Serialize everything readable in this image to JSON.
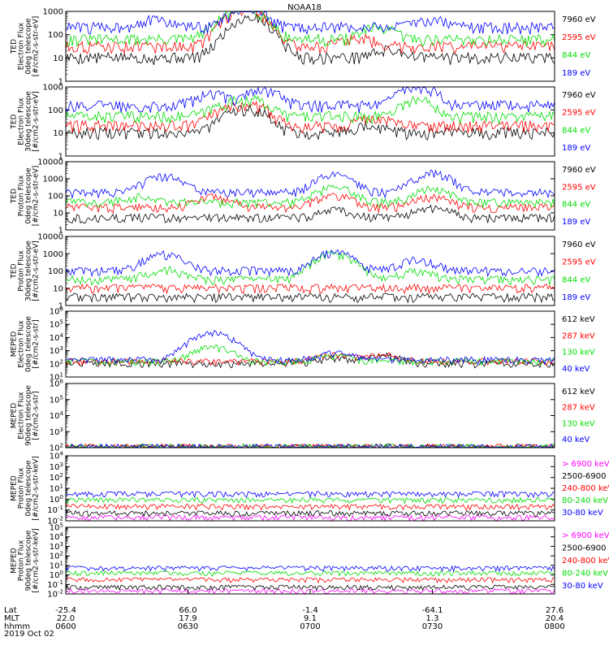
{
  "title": "NOAA18",
  "date_label": "2019 Oct 02",
  "x_axis": {
    "row_labels": [
      "Lat",
      "MLT",
      "hhmm"
    ],
    "ticks": [
      {
        "lat": "-25.4",
        "mlt": "22.0",
        "hhmm": "0600"
      },
      {
        "lat": "66.0",
        "mlt": "17.9",
        "hhmm": "0630"
      },
      {
        "lat": "-1.4",
        "mlt": "9.1",
        "hhmm": "0700"
      },
      {
        "lat": "-64.1",
        "mlt": "1.3",
        "hhmm": "0730"
      },
      {
        "lat": "27.6",
        "mlt": "20.4",
        "hhmm": "0800"
      }
    ]
  },
  "colors": {
    "blue": "#0000ff",
    "red": "#ff0000",
    "green": "#00dd00",
    "black": "#000000",
    "magenta": "#ff00ff"
  },
  "chart_data": [
    {
      "type": "line",
      "ylabel": [
        "TED",
        "Electron Flux",
        "0deg telescope",
        "[#/cm2-s-str-eV]"
      ],
      "yscale": "log",
      "ylim": [
        1,
        1000
      ],
      "ytick_labels": [
        "1000",
        "100",
        "10",
        "1"
      ],
      "legend_placement": "right",
      "series": [
        {
          "name": "7960 eV",
          "color": "black",
          "base": 10,
          "envelope": [
            [
              0.35,
              5
            ],
            [
              0.38,
              50
            ],
            [
              0.66,
              1
            ]
          ]
        },
        {
          "name": "2595 eV",
          "color": "red",
          "base": 30,
          "envelope": [
            [
              0.34,
              3
            ],
            [
              0.37,
              40
            ],
            [
              0.6,
              1.2
            ]
          ]
        },
        {
          "name": "844 eV",
          "color": "green",
          "base": 60,
          "envelope": [
            [
              0.33,
              3
            ],
            [
              0.37,
              20
            ],
            [
              0.64,
              2
            ]
          ]
        },
        {
          "name": "189 eV",
          "color": "blue",
          "base": 200,
          "envelope": [
            [
              0.18,
              1
            ],
            [
              0.37,
              5
            ],
            [
              0.75,
              1
            ]
          ]
        }
      ]
    },
    {
      "type": "line",
      "ylabel": [
        "TED",
        "Electron Flux",
        "30deg telescope",
        "[#/cm2-s-str-eV]"
      ],
      "yscale": "log",
      "ylim": [
        1,
        1000
      ],
      "ytick_labels": [
        "1000",
        "100",
        "10",
        "1"
      ],
      "legend_placement": "right",
      "series": [
        {
          "name": "7960 eV",
          "color": "black",
          "base": 10,
          "envelope": [
            [
              0.34,
              3
            ],
            [
              0.38,
              8
            ],
            [
              0.62,
              1
            ]
          ]
        },
        {
          "name": "2595 eV",
          "color": "red",
          "base": 20,
          "envelope": [
            [
              0.33,
              3
            ],
            [
              0.38,
              6
            ],
            [
              0.63,
              1
            ]
          ]
        },
        {
          "name": "844 eV",
          "color": "green",
          "base": 50,
          "envelope": [
            [
              0.33,
              2
            ],
            [
              0.38,
              4
            ],
            [
              0.72,
              4
            ]
          ]
        },
        {
          "name": "189 eV",
          "color": "blue",
          "base": 150,
          "envelope": [
            [
              0.3,
              2
            ],
            [
              0.4,
              4
            ],
            [
              0.72,
              6
            ]
          ]
        }
      ]
    },
    {
      "type": "line",
      "ylabel": [
        "TED",
        "Proton Flux",
        "0deg telescope",
        "[#/cm2-s-str-eV]"
      ],
      "yscale": "log",
      "ylim": [
        1,
        10000
      ],
      "ytick_labels": [
        "10000",
        "1000",
        "100",
        "10",
        "1"
      ],
      "legend_placement": "right",
      "series": [
        {
          "name": "7960 eV",
          "color": "black",
          "base": 5,
          "envelope": [
            [
              0.55,
              2
            ],
            [
              0.75,
              3
            ]
          ]
        },
        {
          "name": "2595 eV",
          "color": "red",
          "base": 20,
          "envelope": [
            [
              0.3,
              3
            ],
            [
              0.55,
              4
            ],
            [
              0.75,
              3
            ]
          ]
        },
        {
          "name": "844 eV",
          "color": "green",
          "base": 40,
          "envelope": [
            [
              0.15,
              1
            ],
            [
              0.55,
              6
            ],
            [
              0.75,
              5
            ]
          ]
        },
        {
          "name": "189 eV",
          "color": "blue",
          "base": 150,
          "envelope": [
            [
              0.2,
              8
            ],
            [
              0.55,
              10
            ],
            [
              0.75,
              12
            ]
          ]
        }
      ]
    },
    {
      "type": "line",
      "ylabel": [
        "TED",
        "Proton Flux",
        "30deg telescope",
        "[#/cm2-s-str-eV]"
      ],
      "yscale": "log",
      "ylim": [
        1,
        10000
      ],
      "ytick_labels": [
        "10000",
        "1000",
        "100",
        "10",
        "1"
      ],
      "legend_placement": "right",
      "series": [
        {
          "name": "7960 eV",
          "color": "black",
          "base": 3,
          "envelope": []
        },
        {
          "name": "2595 eV",
          "color": "red",
          "base": 10,
          "envelope": []
        },
        {
          "name": "844 eV",
          "color": "green",
          "base": 30,
          "envelope": [
            [
              0.2,
              3
            ],
            [
              0.55,
              30
            ],
            [
              0.72,
              2
            ]
          ]
        },
        {
          "name": "189 eV",
          "color": "blue",
          "base": 100,
          "envelope": [
            [
              0.2,
              8
            ],
            [
              0.55,
              10
            ],
            [
              0.72,
              3
            ]
          ]
        }
      ]
    },
    {
      "type": "line",
      "ylabel": [
        "MEPED",
        "Electron Flux",
        "0deg telescope",
        "[#/cm2-s-str]"
      ],
      "yscale": "log",
      "ylim": [
        10,
        1000000
      ],
      "ytick_labels": [
        "10^6",
        "10^5",
        "10^4",
        "10^3",
        "10^2",
        "10^1"
      ],
      "legend_placement": "right",
      "series": [
        {
          "name": "612 keV",
          "color": "black",
          "base": 100,
          "envelope": [
            [
              0.55,
              1.5
            ],
            [
              0.65,
              3
            ]
          ]
        },
        {
          "name": "287 keV",
          "color": "red",
          "base": 150,
          "envelope": [
            [
              0.55,
              2
            ],
            [
              0.65,
              2
            ]
          ]
        },
        {
          "name": "130 keV",
          "color": "green",
          "base": 150,
          "envelope": [
            [
              0.3,
              10
            ],
            [
              0.55,
              1.5
            ]
          ]
        },
        {
          "name": "40 keV",
          "color": "blue",
          "base": 200,
          "envelope": [
            [
              0.3,
              100
            ],
            [
              0.55,
              2
            ]
          ]
        }
      ]
    },
    {
      "type": "line",
      "ylabel": [
        "MEPED",
        "Electron Flux",
        "90deg telescope",
        "[#/cm2-s-str]"
      ],
      "yscale": "log",
      "ylim": [
        100,
        1000000
      ],
      "ytick_labels": [
        "10^6",
        "10^5",
        "10^4",
        "10^3",
        "10^2"
      ],
      "legend_placement": "right",
      "series": [
        {
          "name": "612 keV",
          "color": "black",
          "base": 100,
          "envelope": []
        },
        {
          "name": "287 keV",
          "color": "red",
          "base": 100,
          "envelope": []
        },
        {
          "name": "130 keV",
          "color": "green",
          "base": 100,
          "envelope": []
        },
        {
          "name": "40 keV",
          "color": "blue",
          "base": 100,
          "envelope": []
        }
      ]
    },
    {
      "type": "line",
      "ylabel": [
        "MEPED",
        "Proton Flux",
        "0deg telescope",
        "[#/cm2-s-str-keV]"
      ],
      "yscale": "log",
      "ylim": [
        0.01,
        10000
      ],
      "ytick_labels": [
        "10^4",
        "10^3",
        "10^2",
        "10^1",
        "10^0",
        "10^-1",
        "10^-2"
      ],
      "legend_placement": "right",
      "series": [
        {
          "name": "> 6900 keV",
          "color": "magenta",
          "base": 0.02,
          "envelope": []
        },
        {
          "name": "2500-6900",
          "color": "black",
          "base": 0.05,
          "envelope": []
        },
        {
          "name": "240-800 keV",
          "color": "red",
          "base": 0.2,
          "envelope": []
        },
        {
          "name": "80-240 keV",
          "color": "green",
          "base": 0.8,
          "envelope": []
        },
        {
          "name": "30-80 keV",
          "color": "blue",
          "base": 3,
          "envelope": []
        }
      ]
    },
    {
      "type": "line",
      "ylabel": [
        "MEPED",
        "Proton Flux",
        "90deg telescope",
        "[#/cm2-s-str-keV]"
      ],
      "yscale": "log",
      "ylim": [
        0.01,
        100000
      ],
      "ytick_labels": [
        "10^5",
        "10^4",
        "10^3",
        "10^2",
        "10^1",
        "10^0",
        "10^-1",
        "10^-2"
      ],
      "legend_placement": "right",
      "series": [
        {
          "name": "> 6900 keV",
          "color": "magenta",
          "base": 0.02,
          "envelope": []
        },
        {
          "name": "2500-6900",
          "color": "black",
          "base": 0.05,
          "envelope": []
        },
        {
          "name": "240-800 keV",
          "color": "red",
          "base": 0.3,
          "envelope": []
        },
        {
          "name": "80-240 keV",
          "color": "green",
          "base": 1.5,
          "envelope": []
        },
        {
          "name": "30-80 keV",
          "color": "blue",
          "base": 5,
          "envelope": []
        }
      ]
    }
  ]
}
